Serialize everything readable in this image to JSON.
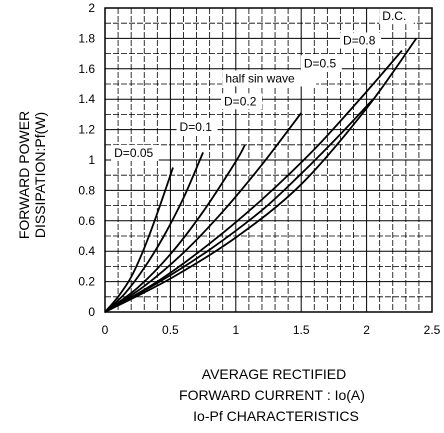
{
  "chart_data": {
    "type": "line",
    "title": "Io-Pf CHARACTERISTICS",
    "xlabel": [
      "AVERAGE RECTIFIED",
      "FORWARD CURRENT : Io(A)"
    ],
    "ylabel": [
      "FORWARD POWER",
      "DISSIPATION:Pf(W)"
    ],
    "xlim": [
      0,
      2.5
    ],
    "ylim": [
      0,
      2
    ],
    "xticks": [
      "0",
      "0.5",
      "1",
      "1.5",
      "2",
      "2.5"
    ],
    "yticks": [
      "0",
      "0.2",
      "0.4",
      "0.6",
      "0.8",
      "1",
      "1.2",
      "1.4",
      "1.6",
      "1.8",
      "2"
    ],
    "grid": true,
    "series": [
      {
        "name": "D=0.05",
        "x": [
          0,
          0.1,
          0.2,
          0.3,
          0.4,
          0.52
        ],
        "y": [
          0,
          0.1,
          0.23,
          0.42,
          0.65,
          0.95
        ]
      },
      {
        "name": "D=0.1",
        "x": [
          0,
          0.15,
          0.3,
          0.45,
          0.6,
          0.75
        ],
        "y": [
          0,
          0.12,
          0.29,
          0.5,
          0.75,
          1.05
        ]
      },
      {
        "name": "D=0.2",
        "x": [
          0,
          0.25,
          0.5,
          0.75,
          1.0,
          1.07
        ],
        "y": [
          0,
          0.16,
          0.38,
          0.66,
          0.99,
          1.1
        ]
      },
      {
        "name": "D=0.5",
        "x": [
          0,
          0.4,
          0.8,
          1.2,
          1.6,
          2.0,
          2.27
        ],
        "y": [
          0,
          0.2,
          0.45,
          0.74,
          1.07,
          1.45,
          1.72
        ]
      },
      {
        "name": "D=0.8",
        "x": [
          0,
          0.4,
          0.8,
          1.2,
          1.5,
          1.8,
          2.05
        ],
        "y": [
          0,
          0.19,
          0.41,
          0.67,
          0.91,
          1.17,
          1.4
        ]
      },
      {
        "name": "half sin wave",
        "x": [
          0,
          0.3,
          0.6,
          0.9,
          1.2,
          1.5
        ],
        "y": [
          0,
          0.17,
          0.39,
          0.66,
          0.97,
          1.31
        ]
      },
      {
        "name": "D.C.",
        "x": [
          0,
          0.5,
          1.0,
          1.5,
          2.0,
          2.38
        ],
        "y": [
          0,
          0.22,
          0.49,
          0.84,
          1.34,
          1.8
        ]
      }
    ],
    "annotations": [
      "D.C.",
      "D=0.8",
      "D=0.5",
      "half sin wave",
      "D=0.2",
      "D=0.1",
      "D=0.05"
    ]
  }
}
